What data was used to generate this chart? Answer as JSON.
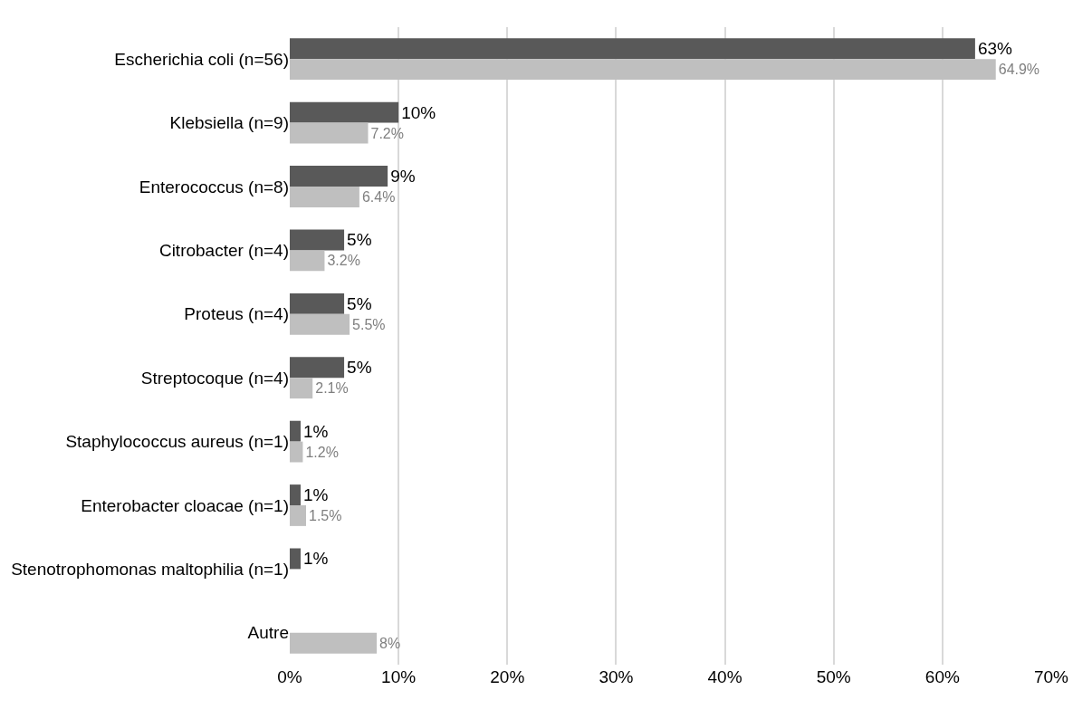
{
  "chart_data": {
    "type": "bar",
    "orientation": "horizontal",
    "categories": [
      "Escherichia coli (n=56)",
      "Klebsiella (n=9)",
      "Enterococcus (n=8)",
      "Citrobacter (n=4)",
      "Proteus (n=4)",
      "Streptocoque (n=4)",
      "Staphylococcus aureus (n=1)",
      "Enterobacter cloacae (n=1)",
      "Stenotrophomonas maltophilia (n=1)",
      "Autre"
    ],
    "series": [
      {
        "color": "#595959",
        "values": [
          63,
          10,
          9,
          5,
          5,
          5,
          1,
          1,
          1,
          null
        ],
        "value_labels": [
          "63%",
          "10%",
          "9%",
          "5%",
          "5%",
          "5%",
          "1%",
          "1%",
          "1%",
          null
        ]
      },
      {
        "color": "#bfbfbf",
        "values": [
          64.9,
          7.2,
          6.4,
          3.2,
          5.5,
          2.1,
          1.2,
          1.5,
          null,
          8
        ],
        "value_labels": [
          "64.9%",
          "7.2%",
          "6.4%",
          "3.2%",
          "5.5%",
          "2.1%",
          "1.2%",
          "1.5%",
          null,
          "8%"
        ]
      }
    ],
    "xlim": [
      0,
      70
    ],
    "xticks": [
      {
        "value": 0,
        "label": "0%"
      },
      {
        "value": 10,
        "label": "10%"
      },
      {
        "value": 20,
        "label": "20%"
      },
      {
        "value": 30,
        "label": "30%"
      },
      {
        "value": 40,
        "label": "40%"
      },
      {
        "value": 50,
        "label": "50%"
      },
      {
        "value": 60,
        "label": "60%"
      },
      {
        "value": 70,
        "label": "70%"
      }
    ],
    "grid": "x"
  }
}
